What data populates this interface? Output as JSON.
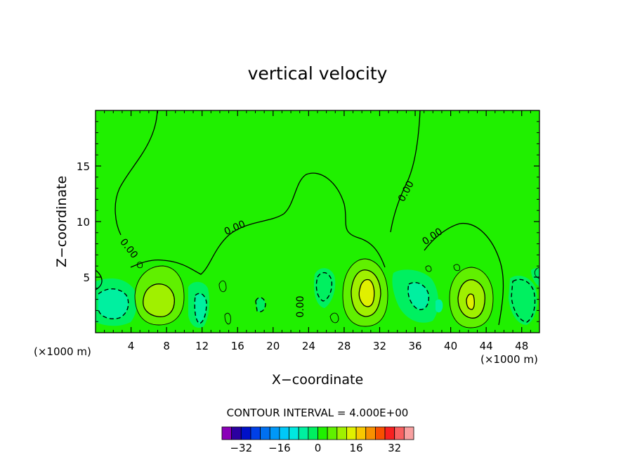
{
  "chart_data": {
    "type": "heatmap",
    "title": "vertical velocity",
    "xlabel": "X−coordinate",
    "ylabel": "Z−coordinate",
    "x_unit_label": "(×1000 m)",
    "xlim": [
      0,
      50
    ],
    "ylim": [
      0,
      20
    ],
    "x_ticks": [
      4,
      8,
      12,
      16,
      20,
      24,
      28,
      32,
      36,
      40,
      44,
      48
    ],
    "y_ticks": [
      5,
      10,
      15
    ],
    "grid": false,
    "contour_label": "0.00",
    "contour_interval_text": "CONTOUR INTERVAL = 4.000E+00",
    "colorbar": {
      "levels": [
        -36,
        -32,
        -28,
        -24,
        -20,
        -16,
        -12,
        -8,
        -4,
        0,
        4,
        8,
        12,
        16,
        20,
        24,
        28,
        32,
        36
      ],
      "colors": [
        "#8a00b8",
        "#2a00a0",
        "#0010c8",
        "#0040e8",
        "#0070f0",
        "#0098f8",
        "#00c8f8",
        "#00e8e0",
        "#00f0a0",
        "#00f060",
        "#20f000",
        "#60f000",
        "#a0f000",
        "#e0f000",
        "#f8c800",
        "#f89000",
        "#f85000",
        "#f82020",
        "#f86060",
        "#f8a0a0"
      ],
      "tick_values": [
        -32,
        -16,
        0,
        16,
        32
      ],
      "tick_labels": [
        "−32",
        "−16",
        "0",
        "16",
        "32"
      ]
    },
    "field": {
      "background_value": 2,
      "features": [
        {
          "x": 2.7,
          "z": 2.3,
          "value": -6,
          "sx": 1.6,
          "sz": 1.4
        },
        {
          "x": 6.8,
          "z": 2.8,
          "value": 10,
          "sx": 1.4,
          "sz": 1.4
        },
        {
          "x": 11.8,
          "z": 2.4,
          "value": -8,
          "sx": 0.7,
          "sz": 2.0
        },
        {
          "x": 14.9,
          "z": 2.6,
          "value": 1,
          "sx": 0.5,
          "sz": 1.2
        },
        {
          "x": 18.2,
          "z": 2.6,
          "value": -1,
          "sx": 0.5,
          "sz": 0.8
        },
        {
          "x": 24.2,
          "z": 2.0,
          "value": -2,
          "sx": 0.8,
          "sz": 1.8
        },
        {
          "x": 26.3,
          "z": 3.6,
          "value": -5,
          "sx": 0.9,
          "sz": 1.6
        },
        {
          "x": 30.3,
          "z": 3.5,
          "value": 14,
          "sx": 1.2,
          "sz": 2.2
        },
        {
          "x": 36.7,
          "z": 3.0,
          "value": -8,
          "sx": 1.4,
          "sz": 1.8
        },
        {
          "x": 42.1,
          "z": 2.8,
          "value": 12,
          "sx": 1.3,
          "sz": 2.2
        },
        {
          "x": 47.6,
          "z": 2.7,
          "value": -5,
          "sx": 1.1,
          "sz": 1.6
        }
      ]
    }
  }
}
